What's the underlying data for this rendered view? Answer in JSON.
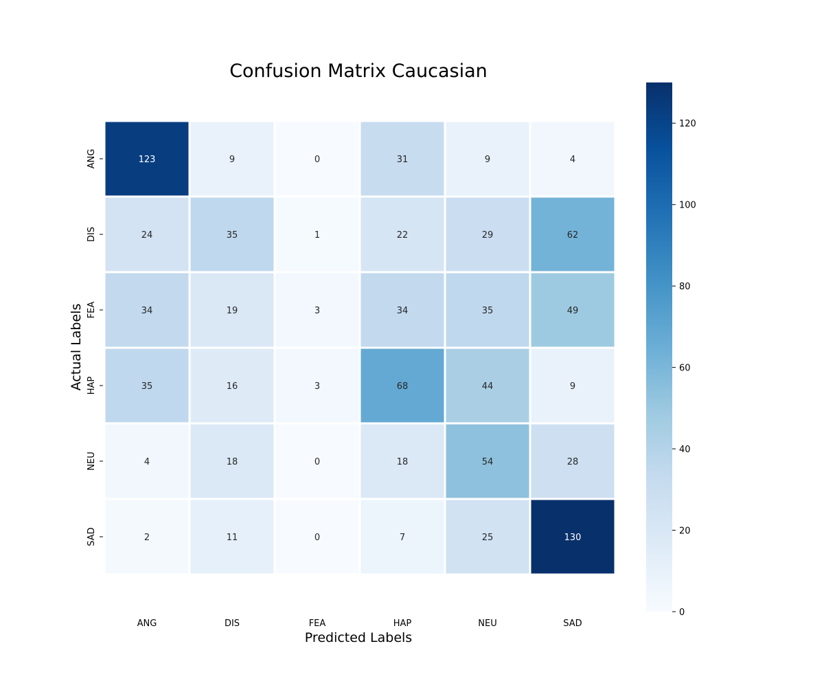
{
  "chart_data": {
    "type": "heatmap",
    "title": "Confusion Matrix Caucasian",
    "xlabel": "Predicted Labels",
    "ylabel": "Actual Labels",
    "x_categories": [
      "ANG",
      "DIS",
      "FEA",
      "HAP",
      "NEU",
      "SAD"
    ],
    "y_categories": [
      "ANG",
      "DIS",
      "FEA",
      "HAP",
      "NEU",
      "SAD"
    ],
    "values": [
      [
        123,
        9,
        0,
        31,
        9,
        4
      ],
      [
        24,
        35,
        1,
        22,
        29,
        62
      ],
      [
        34,
        19,
        3,
        34,
        35,
        49
      ],
      [
        35,
        16,
        3,
        68,
        44,
        9
      ],
      [
        4,
        18,
        0,
        18,
        54,
        28
      ],
      [
        2,
        11,
        0,
        7,
        25,
        130
      ]
    ],
    "colormap": "Blues",
    "color_range": [
      0,
      130
    ],
    "colorbar_ticks": [
      0,
      20,
      40,
      60,
      80,
      100,
      120
    ],
    "colorbar_tick_labels": [
      "0",
      "20",
      "40",
      "60",
      "80",
      "100",
      "120"
    ],
    "annotations": true,
    "grid_line_color": "#ffffff"
  }
}
